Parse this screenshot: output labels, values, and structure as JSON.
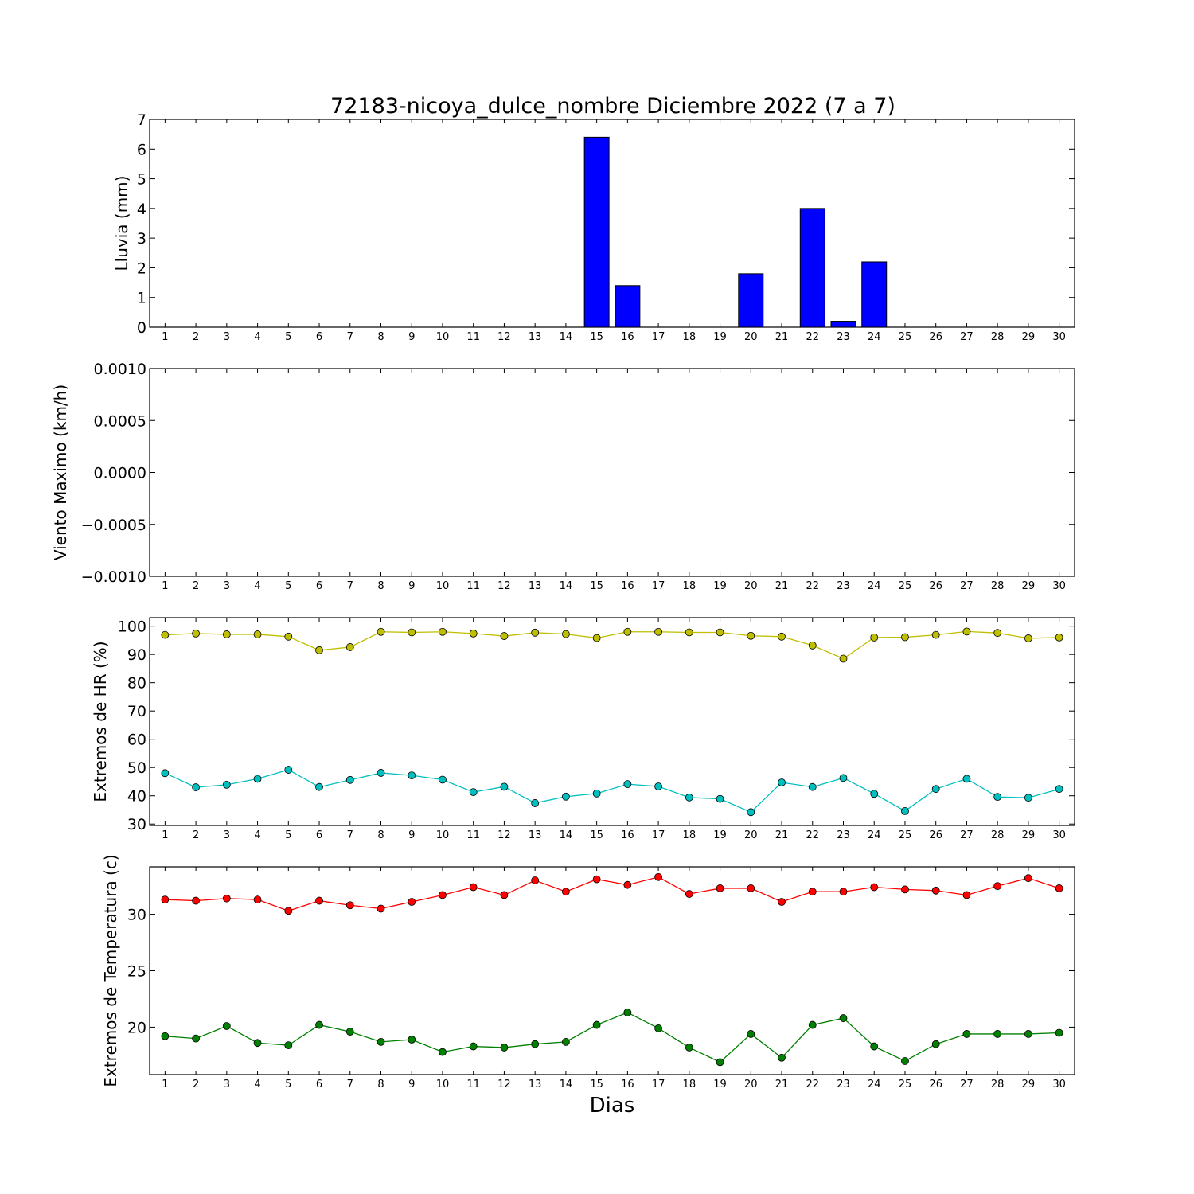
{
  "chart_data": [
    {
      "type": "bar",
      "title": "72183-nicoya_dulce_nombre Diciembre 2022  (7 a 7)",
      "xlabel": "",
      "ylabel": "Lluvia (mm)",
      "categories": [
        "1",
        "2",
        "3",
        "4",
        "5",
        "6",
        "7",
        "8",
        "9",
        "10",
        "11",
        "12",
        "13",
        "14",
        "15",
        "16",
        "17",
        "18",
        "19",
        "20",
        "21",
        "22",
        "23",
        "24",
        "25",
        "26",
        "27",
        "28",
        "29",
        "30"
      ],
      "values": [
        0,
        0,
        0,
        0,
        0,
        0,
        0,
        0,
        0,
        0,
        0,
        0,
        0,
        0,
        6.4,
        1.4,
        0,
        0,
        0,
        1.8,
        0,
        4.0,
        0.2,
        2.2,
        0,
        0,
        0,
        0,
        0,
        0
      ],
      "ylim": [
        0,
        7
      ],
      "yticks": [
        "0",
        "1",
        "2",
        "3",
        "4",
        "5",
        "6",
        "7"
      ],
      "color": "#0000ff",
      "grid": false
    },
    {
      "type": "line",
      "title": "",
      "xlabel": "",
      "ylabel": "Viento Maximo (km/h)",
      "categories": [
        "1",
        "2",
        "3",
        "4",
        "5",
        "6",
        "7",
        "8",
        "9",
        "10",
        "11",
        "12",
        "13",
        "14",
        "15",
        "16",
        "17",
        "18",
        "19",
        "20",
        "21",
        "22",
        "23",
        "24",
        "25",
        "26",
        "27",
        "28",
        "29",
        "30"
      ],
      "series": [],
      "ylim": [
        -0.001,
        0.001
      ],
      "yticks": [
        "−0.0010",
        "−0.0005",
        "0.0000",
        "0.0005",
        "0.0010"
      ],
      "grid": false
    },
    {
      "type": "line",
      "title": "",
      "xlabel": "",
      "ylabel": "Extremos de HR (%)",
      "categories": [
        "1",
        "2",
        "3",
        "4",
        "5",
        "6",
        "7",
        "8",
        "9",
        "10",
        "11",
        "12",
        "13",
        "14",
        "15",
        "16",
        "17",
        "18",
        "19",
        "20",
        "21",
        "22",
        "23",
        "24",
        "25",
        "26",
        "27",
        "28",
        "29",
        "30"
      ],
      "series": [
        {
          "values": [
            96.9,
            97.4,
            97.1,
            97.1,
            96.3,
            91.5,
            92.6,
            98.0,
            97.8,
            98.0,
            97.4,
            96.5,
            97.7,
            97.2,
            95.8,
            98.0,
            98.0,
            97.8,
            97.8,
            96.6,
            96.3,
            93.2,
            88.5,
            96.0,
            96.1,
            96.9,
            98.1,
            97.6,
            95.7,
            96.0
          ],
          "color": "#bfbf00"
        },
        {
          "values": [
            48.0,
            43.0,
            43.9,
            46.0,
            49.2,
            43.1,
            45.6,
            48.1,
            47.2,
            45.7,
            41.3,
            43.2,
            37.4,
            39.7,
            40.8,
            44.1,
            43.3,
            39.4,
            38.9,
            34.2,
            44.7,
            43.1,
            46.3,
            40.7,
            34.6,
            42.4,
            46.0,
            39.6,
            39.3,
            42.4
          ],
          "color": "#00bfbf"
        }
      ],
      "ylim": [
        29.5,
        103
      ],
      "yticks": [
        "30",
        "40",
        "50",
        "60",
        "70",
        "80",
        "90",
        "100"
      ],
      "grid": false
    },
    {
      "type": "line",
      "title": "",
      "xlabel": "Dias",
      "ylabel": "Extremos de Temperatura (c)",
      "categories": [
        "1",
        "2",
        "3",
        "4",
        "5",
        "6",
        "7",
        "8",
        "9",
        "10",
        "11",
        "12",
        "13",
        "14",
        "15",
        "16",
        "17",
        "18",
        "19",
        "20",
        "21",
        "22",
        "23",
        "24",
        "25",
        "26",
        "27",
        "28",
        "29",
        "30"
      ],
      "series": [
        {
          "values": [
            31.3,
            31.2,
            31.4,
            31.3,
            30.3,
            31.2,
            30.8,
            30.5,
            31.1,
            31.7,
            32.4,
            31.7,
            33.0,
            32.0,
            33.1,
            32.6,
            33.3,
            31.8,
            32.3,
            32.3,
            31.1,
            32.0,
            32.0,
            32.4,
            32.2,
            32.1,
            31.7,
            32.5,
            33.2,
            32.3
          ],
          "color": "#ff0000"
        },
        {
          "values": [
            19.2,
            19.0,
            20.1,
            18.6,
            18.4,
            20.2,
            19.6,
            18.7,
            18.9,
            17.8,
            18.3,
            18.2,
            18.5,
            18.7,
            20.2,
            21.3,
            19.9,
            18.2,
            16.9,
            19.4,
            17.3,
            20.2,
            20.8,
            18.3,
            17.0,
            18.5,
            19.4,
            19.4,
            19.4,
            19.5
          ],
          "color": "#008000"
        }
      ],
      "ylim": [
        15.8,
        34.2
      ],
      "yticks": [
        "20",
        "25",
        "30"
      ],
      "grid": false
    }
  ]
}
